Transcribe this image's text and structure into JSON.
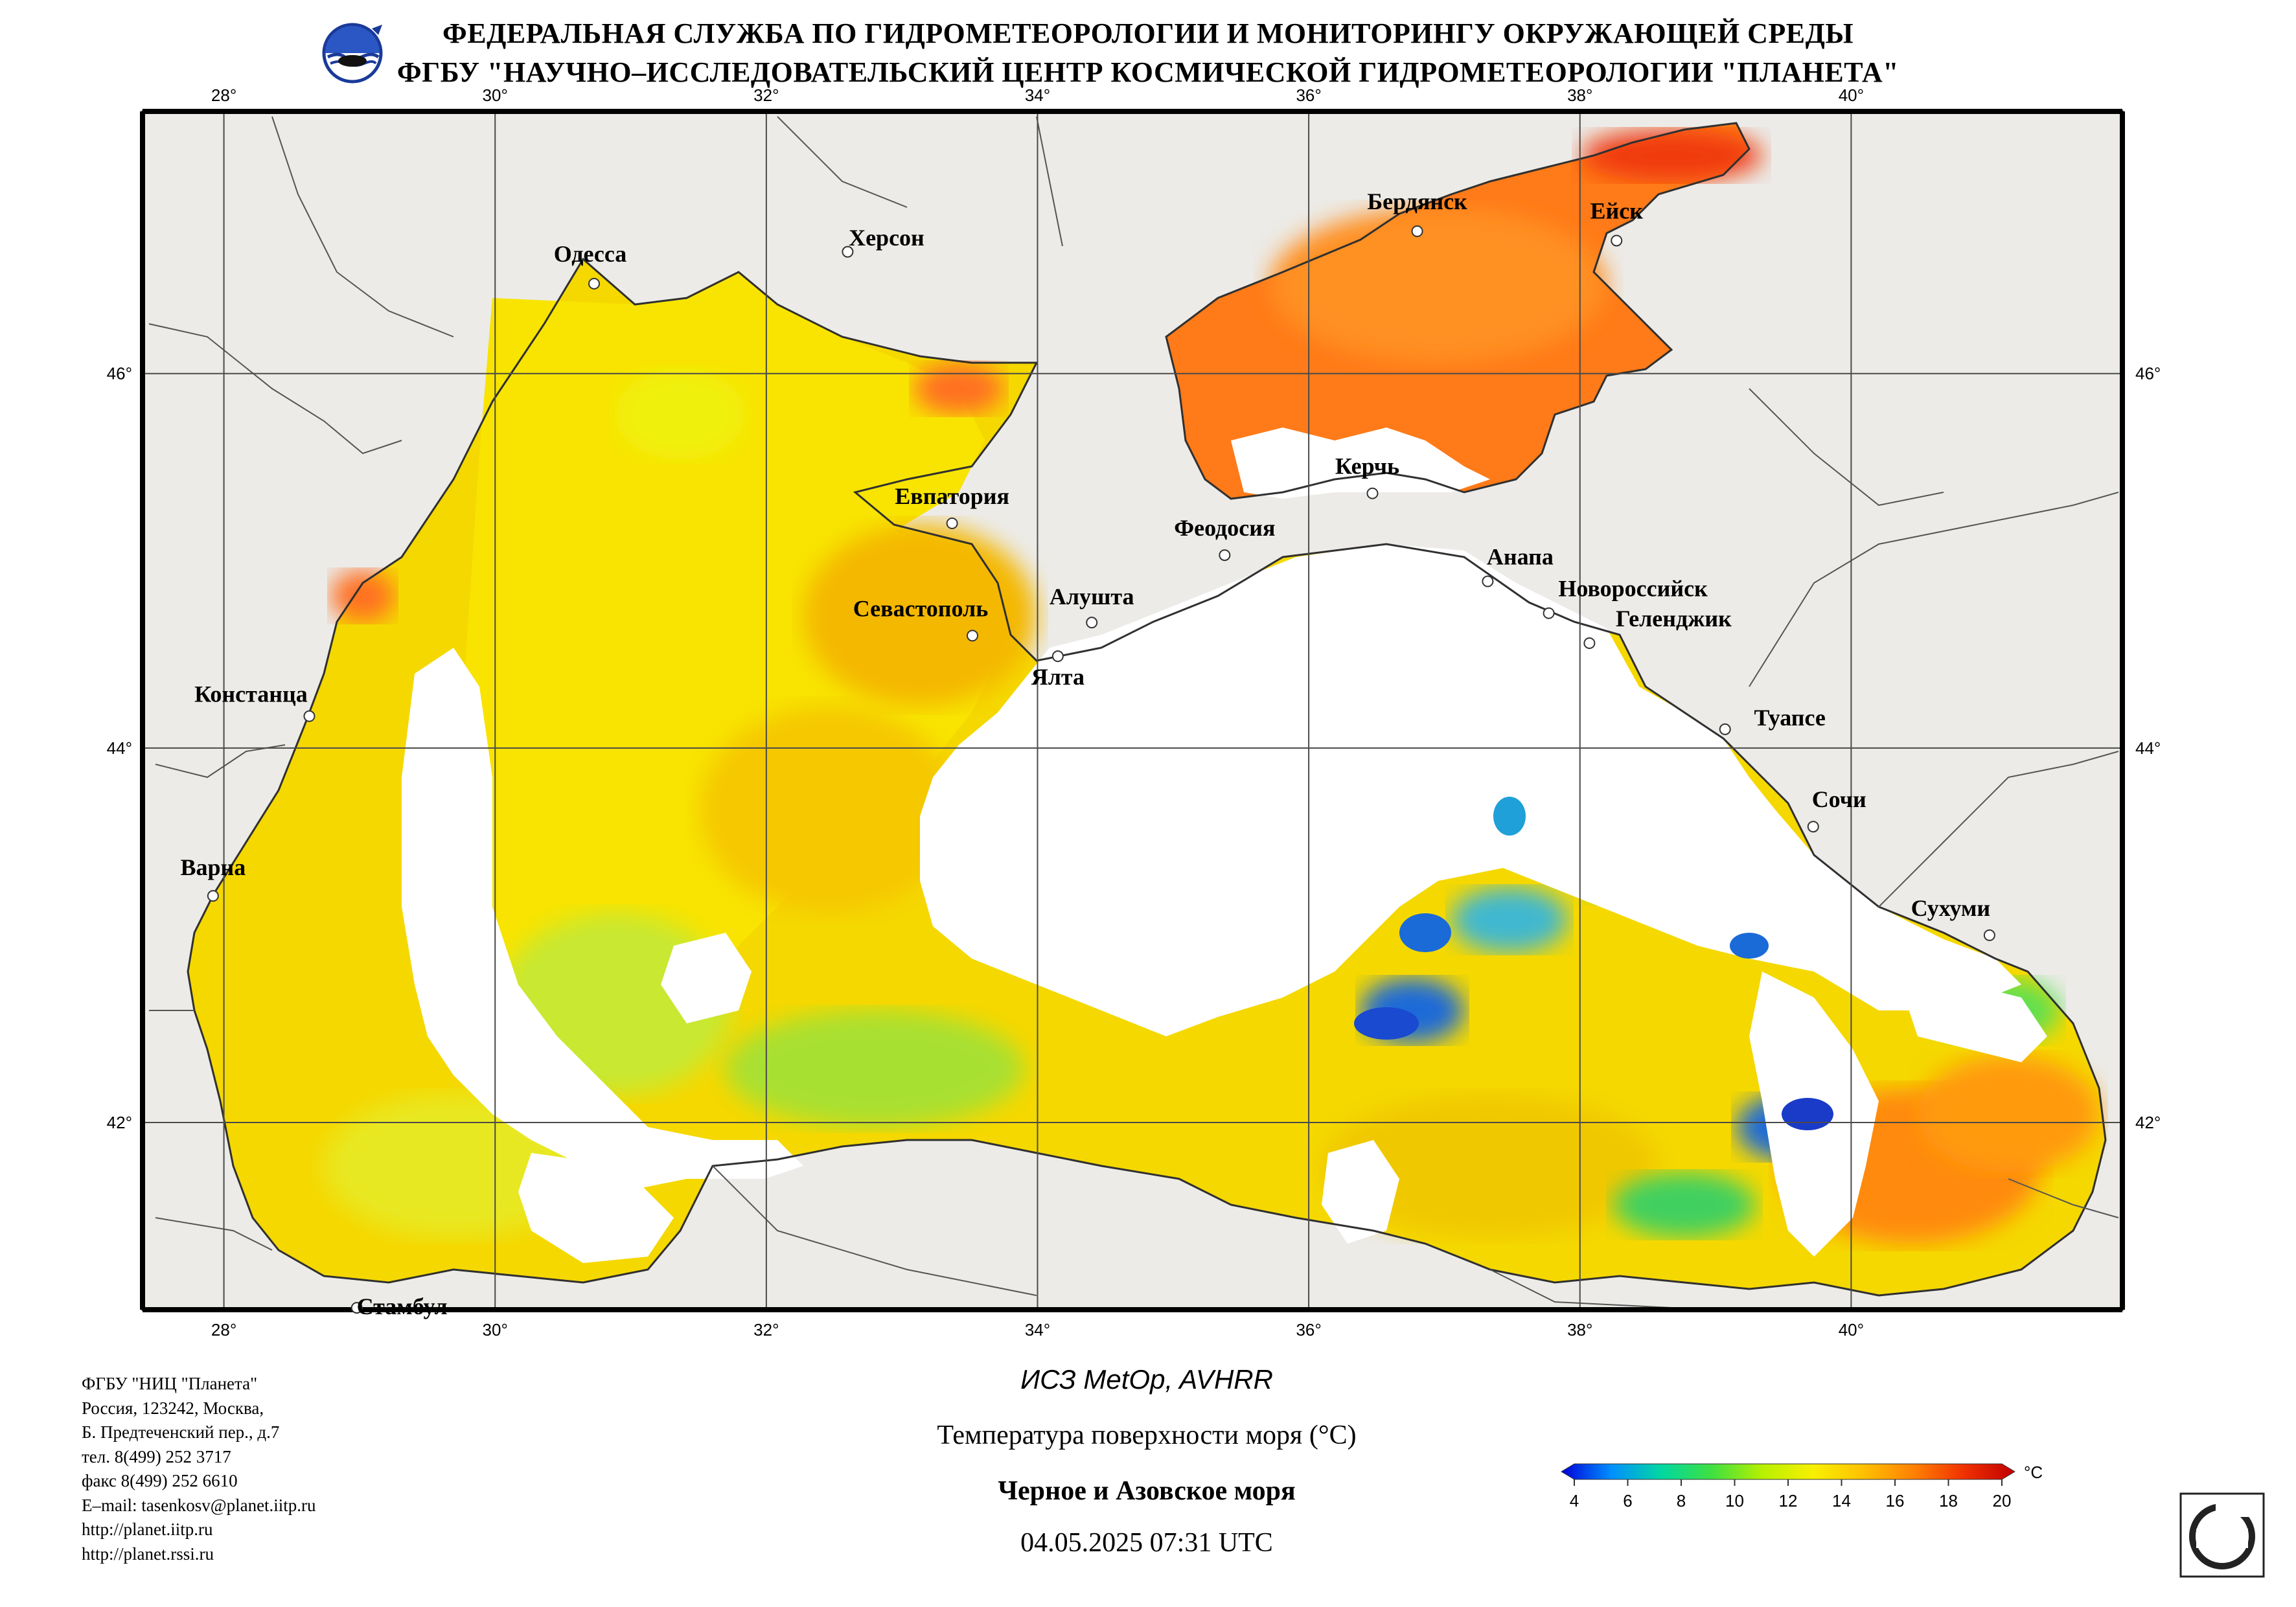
{
  "header": {
    "line1": "ФЕДЕРАЛЬНАЯ СЛУЖБА ПО ГИДРОМЕТЕОРОЛОГИИ И МОНИТОРИНГУ ОКРУЖАЮЩЕЙ СРЕДЫ",
    "line2": "ФГБУ \"НАУЧНО–ИССЛЕДОВАТЕЛЬСКИЙ ЦЕНТР КОСМИЧЕСКОЙ ГИДРОМЕТЕОРОЛОГИИ \"ПЛАНЕТА\""
  },
  "map": {
    "lon_ticks": [
      "28°",
      "30°",
      "32°",
      "34°",
      "36°",
      "38°",
      "40°"
    ],
    "lon_values": [
      28,
      30,
      32,
      34,
      36,
      38,
      40
    ],
    "lat_ticks": [
      "46°",
      "44°",
      "42°"
    ],
    "lat_values": [
      46,
      44,
      42
    ],
    "lon_range": [
      27.4,
      42.0
    ],
    "lat_range": [
      41.0,
      47.4
    ],
    "colors": {
      "land": "#ecebe8",
      "cloud": "#ffffff",
      "border": "#000000",
      "grid": "#4a4a4a"
    },
    "cities": [
      {
        "name": "Одесса",
        "lon": 30.73,
        "lat": 46.48
      },
      {
        "name": "Херсон",
        "lon": 32.6,
        "lat": 46.65
      },
      {
        "name": "Бердянск",
        "lon": 36.8,
        "lat": 46.76
      },
      {
        "name": "Ейск",
        "lon": 38.27,
        "lat": 46.71
      },
      {
        "name": "Евпатория",
        "lon": 33.37,
        "lat": 45.2
      },
      {
        "name": "Керчь",
        "lon": 36.47,
        "lat": 45.36
      },
      {
        "name": "Феодосия",
        "lon": 35.38,
        "lat": 45.03
      },
      {
        "name": "Анапа",
        "lon": 37.32,
        "lat": 44.89
      },
      {
        "name": "Новороссийск",
        "lon": 37.77,
        "lat": 44.72
      },
      {
        "name": "Геленджик",
        "lon": 38.07,
        "lat": 44.56
      },
      {
        "name": "Севастополь",
        "lon": 33.52,
        "lat": 44.6
      },
      {
        "name": "Алушта",
        "lon": 34.4,
        "lat": 44.67
      },
      {
        "name": "Ялта",
        "lon": 34.15,
        "lat": 44.49
      },
      {
        "name": "Констанца",
        "lon": 28.63,
        "lat": 44.17
      },
      {
        "name": "Туапсе",
        "lon": 39.07,
        "lat": 44.1
      },
      {
        "name": "Сочи",
        "lon": 39.72,
        "lat": 43.58
      },
      {
        "name": "Варна",
        "lon": 27.92,
        "lat": 43.21
      },
      {
        "name": "Сухуми",
        "lon": 41.02,
        "lat": 43.0
      },
      {
        "name": "Стамбул",
        "lon": 28.98,
        "lat": 41.01
      }
    ]
  },
  "info": {
    "org": "ФГБУ \"НИЦ \"Планета\"",
    "addr1": "Россия, 123242, Москва,",
    "addr2": "Б. Предтеченский пер., д.7",
    "tel": "тел. 8(499) 252 3717",
    "fax": "факс 8(499) 252 6610",
    "email": "E–mail: tasenkosv@planet.iitp.ru",
    "url1": "http://planet.iitp.ru",
    "url2": "http://planet.rssi.ru"
  },
  "captions": {
    "satellite": "ИСЗ MetOp, AVHRR",
    "parameter": "Температура поверхности моря (°C)",
    "region": "Черное и Азовское моря",
    "datetime": "04.05.2025 07:31 UTC"
  },
  "colorbar": {
    "unit": "°C",
    "ticks": [
      "4",
      "6",
      "8",
      "10",
      "12",
      "14",
      "16",
      "18",
      "20"
    ],
    "tick_values": [
      4,
      6,
      8,
      10,
      12,
      14,
      16,
      18,
      20
    ],
    "stops": [
      "#0000d8",
      "#0090ff",
      "#00d8a0",
      "#40e040",
      "#b8f000",
      "#f8f000",
      "#ffc000",
      "#ff8000",
      "#f03000",
      "#c00000"
    ]
  }
}
